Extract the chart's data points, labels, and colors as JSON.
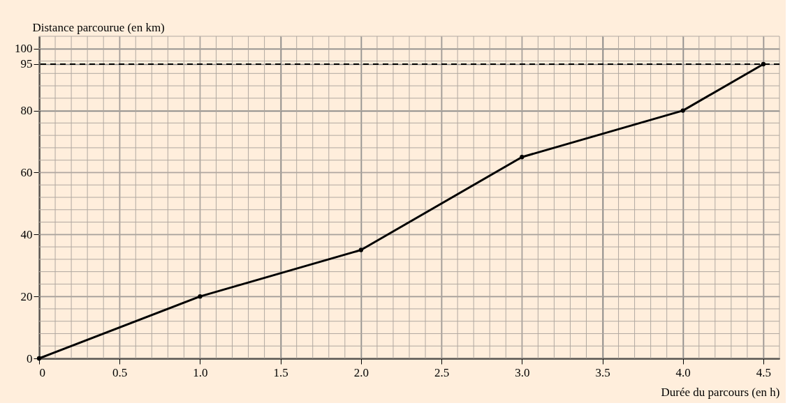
{
  "chart_data": {
    "type": "line",
    "xlabel": "Durée du parcours (en h)",
    "ylabel": "Distance parcourue (en km)",
    "x": [
      0,
      1,
      2,
      3,
      4,
      4.5
    ],
    "series": [
      {
        "color": "#000000",
        "values": [
          0,
          20,
          35,
          65,
          80,
          95
        ]
      }
    ],
    "xlim": [
      0,
      4.6
    ],
    "ylim": [
      0,
      104
    ],
    "xticks": [
      0,
      {
        "value": 0.5,
        "label": "0.5"
      },
      {
        "value": 1,
        "label": "1.0"
      },
      {
        "value": 1.5,
        "label": "1.5"
      },
      {
        "value": 2,
        "label": "2.0"
      },
      {
        "value": 2.5,
        "label": "2.5"
      },
      {
        "value": 3,
        "label": "3.0"
      },
      {
        "value": 3.5,
        "label": "3.5"
      },
      {
        "value": 4,
        "label": "4.0"
      },
      {
        "value": 4.5,
        "label": "4.5"
      }
    ],
    "yticks": [
      0,
      20,
      40,
      60,
      80,
      95,
      100
    ],
    "ref_lines": [
      {
        "axis": "y",
        "value": 95,
        "color": "#000000",
        "line_style": "dashed"
      }
    ],
    "grid": true,
    "marker": "circle",
    "line_style": "solid"
  }
}
